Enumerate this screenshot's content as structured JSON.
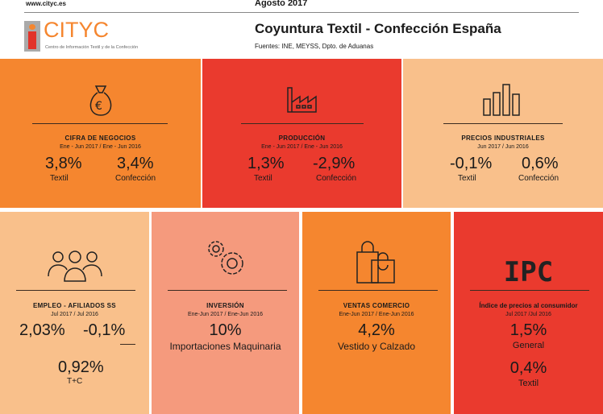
{
  "header": {
    "url": "www.cityc.es",
    "month": "Agosto 2017",
    "title": "Coyuntura Textil - Confección España",
    "sources": "Fuentes: INE, MEYSS, Dpto. de Aduanas",
    "logo_text": "CITYC",
    "logo_sub": "Centro de Información Textil y de la Confección"
  },
  "colors": {
    "orange": "#f5862f",
    "red": "#ea3a2e",
    "peach": "#f9c08b",
    "salmon": "#f59a7d"
  },
  "panels": {
    "cifra": {
      "title": "CIFRA DE NEGOCIOS",
      "period": "Ene - Jun  2017 / Ene - Jun  2016",
      "v1": "3,8%",
      "l1": "Textil",
      "v2": "3,4%",
      "l2": "Confección",
      "icon": "money-bag-icon"
    },
    "produccion": {
      "title": "PRODUCCIÓN",
      "period": "Ene - Jun  2017 / Ene - Jun  2016",
      "v1": "1,3%",
      "l1": "Textil",
      "v2": "-2,9%",
      "l2": "Confección",
      "icon": "factory-icon"
    },
    "precios": {
      "title": "PRECIOS INDUSTRIALES",
      "period": "Jun  2017 / Jun  2016",
      "v1": "-0,1%",
      "l1": "Textil",
      "v2": "0,6%",
      "l2": "Confección",
      "icon": "bar-chart-icon"
    },
    "empleo": {
      "title": "EMPLEO - AFILIADOS SS",
      "period": "Jul  2017 / Jul 2016",
      "v1": "2,03%",
      "v2": "-0,1%",
      "v3": "0,92%",
      "l3": "T+C",
      "icon": "people-icon"
    },
    "inversion": {
      "title": "INVERSIÓN",
      "period": "Ene-Jun 2017 / Ene-Jun  2016",
      "v1": "10%",
      "l1": "Importaciones Maquinaria",
      "icon": "gears-icon"
    },
    "ventas": {
      "title": "VENTAS COMERCIO",
      "period": "Ene-Jun 2017 / Ene-Jun 2016",
      "v1": "4,2%",
      "l1": "Vestido y Calzado",
      "icon": "shopping-bags-icon"
    },
    "ipc": {
      "badge": "IPC",
      "title": "Índice de precios al consumidor",
      "period": "Jul 2017 /Jul 2016",
      "v1": "1,5%",
      "l1": "General",
      "v2": "0,4%",
      "l2": "Textil"
    }
  }
}
